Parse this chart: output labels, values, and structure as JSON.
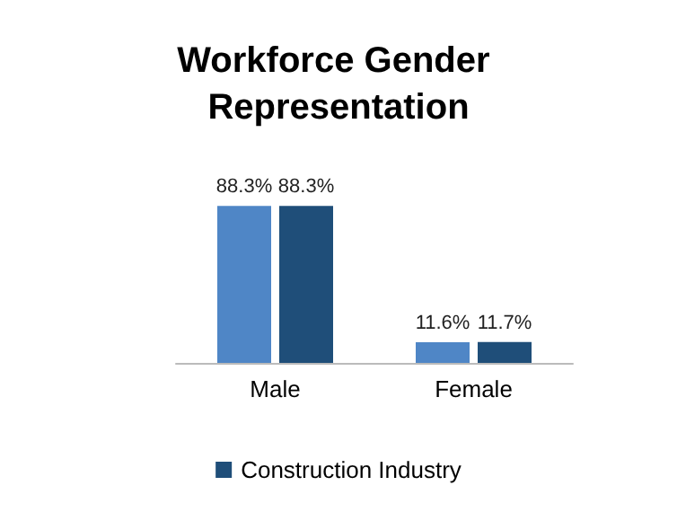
{
  "chart_data": {
    "type": "bar",
    "title": "Workforce Gender Representation",
    "categories": [
      "Male",
      "Female"
    ],
    "series": [
      {
        "color": "#4f86c6",
        "values": [
          88.3,
          11.6
        ],
        "value_labels": [
          "88.3%",
          "11.6%"
        ]
      },
      {
        "name": "Construction Industry",
        "color": "#1f4e79",
        "values": [
          88.3,
          11.7
        ],
        "value_labels": [
          "88.3%",
          "11.7%"
        ]
      }
    ],
    "legend": "bottom"
  }
}
